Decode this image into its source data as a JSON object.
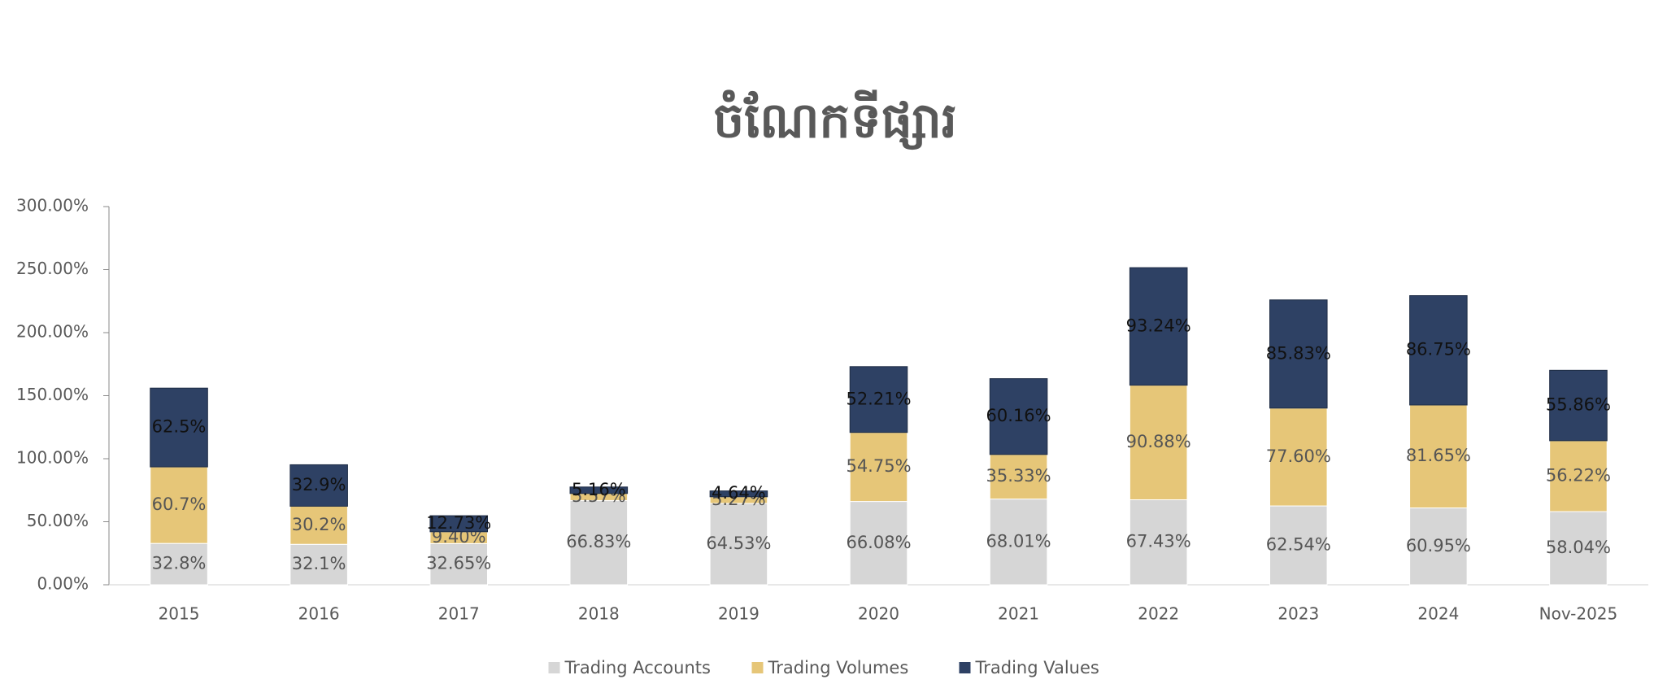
{
  "chart_data": {
    "type": "stacked-bar",
    "title": "ចំណែកទីផ្សារ",
    "categories": [
      "2015",
      "2016",
      "2017",
      "2018",
      "2019",
      "2020",
      "2021",
      "2022",
      "2023",
      "2024",
      "Nov-2025"
    ],
    "series": [
      {
        "name": "Trading Accounts",
        "color": "#d6d6d6",
        "values": [
          32.8,
          32.1,
          32.65,
          66.83,
          64.53,
          66.08,
          68.01,
          67.43,
          62.54,
          60.95,
          58.04
        ],
        "value_labels": [
          "32.8%",
          "32.1%",
          "32.65%",
          "66.83%",
          "64.53%",
          "66.08%",
          "68.01%",
          "67.43%",
          "62.54%",
          "60.95%",
          "58.04%"
        ]
      },
      {
        "name": "Trading Volumes",
        "color": "#e6c678",
        "values": [
          60.7,
          30.2,
          9.4,
          5.57,
          5.27,
          54.75,
          35.33,
          90.88,
          77.6,
          81.65,
          56.22
        ],
        "value_labels": [
          "60.7%",
          "30.2%",
          "9.40%",
          "5.57%",
          "5.27%",
          "54.75%",
          "35.33%",
          "90.88%",
          "77.60%",
          "81.65%",
          "56.22%"
        ]
      },
      {
        "name": "Trading Values",
        "color": "#2e4164",
        "values": [
          62.5,
          32.9,
          12.73,
          5.16,
          4.64,
          52.21,
          60.16,
          93.24,
          85.83,
          86.75,
          55.86
        ],
        "value_labels": [
          "62.5%",
          "32.9%",
          "12.73%",
          "5.16%",
          "4.64%",
          "52.21%",
          "60.16%",
          "93.24%",
          "85.83%",
          "86.75%",
          "55.86%"
        ]
      }
    ],
    "ylim": [
      0,
      300
    ],
    "yticks": [
      {
        "value": 0,
        "label": "0.00%"
      },
      {
        "value": 50,
        "label": "50.00%"
      },
      {
        "value": 100,
        "label": "100.00%"
      },
      {
        "value": 150,
        "label": "150.00%"
      },
      {
        "value": 200,
        "label": "200.00%"
      },
      {
        "value": 250,
        "label": "250.00%"
      },
      {
        "value": 300,
        "label": "300.00%"
      }
    ],
    "legend": "bottom"
  }
}
